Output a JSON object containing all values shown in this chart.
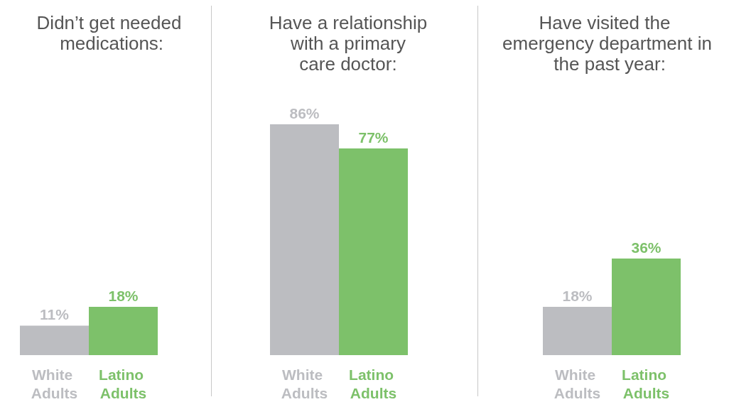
{
  "chart_data": [
    {
      "type": "bar",
      "title": "Didn’t get needed medications:",
      "categories": [
        "White Adults",
        "Latino Adults"
      ],
      "values": [
        11,
        18
      ],
      "value_labels": [
        "11%",
        "18%"
      ],
      "colors": [
        "#bcbdc1",
        "#7dc16a"
      ],
      "tick_labels": "x"
    },
    {
      "type": "bar",
      "title": "Have a relationship with a primary care doctor:",
      "categories": [
        "White Adults",
        "Latino Adults"
      ],
      "values": [
        86,
        77
      ],
      "value_labels": [
        "86%",
        "77%"
      ],
      "colors": [
        "#bcbdc1",
        "#7dc16a"
      ],
      "tick_labels": "x"
    },
    {
      "type": "bar",
      "title": "Have visited the emergency department in the past year:",
      "categories": [
        "White Adults",
        "Latino Adults"
      ],
      "values": [
        18,
        36
      ],
      "value_labels": [
        "18%",
        "36%"
      ],
      "colors": [
        "#bcbdc1",
        "#7dc16a"
      ],
      "tick_labels": "x"
    }
  ]
}
